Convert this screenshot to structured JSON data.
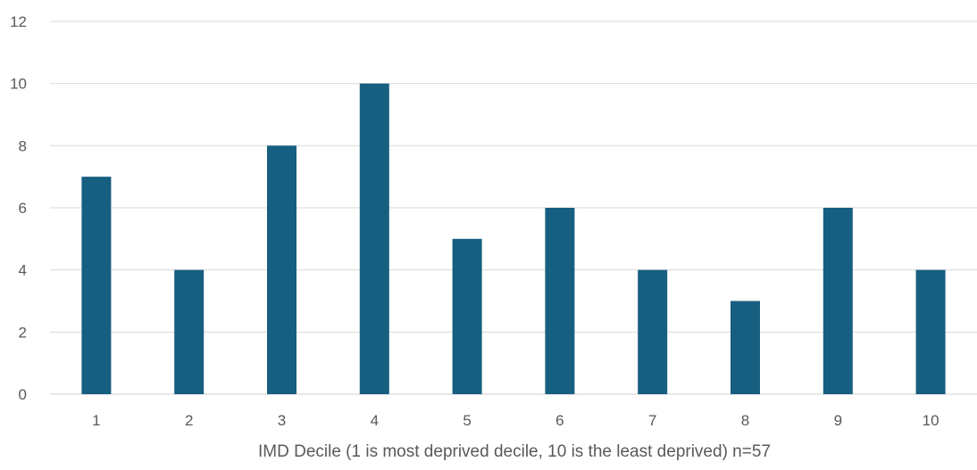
{
  "chart_data": {
    "type": "bar",
    "categories": [
      "1",
      "2",
      "3",
      "4",
      "5",
      "6",
      "7",
      "8",
      "9",
      "10"
    ],
    "values": [
      7,
      4,
      8,
      10,
      5,
      6,
      4,
      3,
      6,
      4
    ],
    "title": "",
    "xlabel": "IMD Decile (1 is most deprived decile, 10 is the least deprived) n=57",
    "ylabel": "",
    "ylim": [
      0,
      12
    ],
    "yticks": [
      "0",
      "2",
      "4",
      "6",
      "8",
      "10",
      "12"
    ],
    "grid": true,
    "legend": "none",
    "bar_color": "#175f80"
  }
}
